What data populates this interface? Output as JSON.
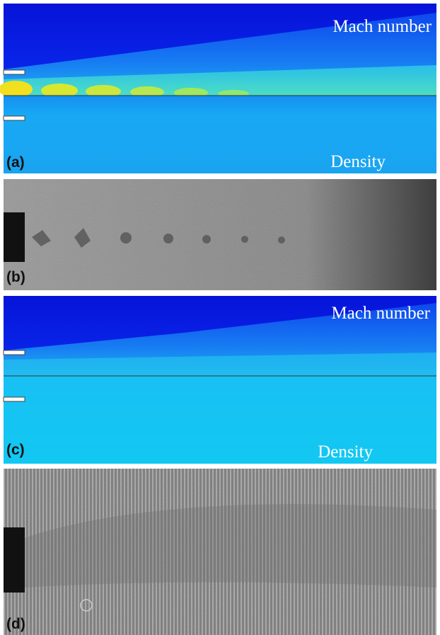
{
  "panels": [
    {
      "label": "(a)",
      "upper_label": "Mach number",
      "lower_label": "Density"
    },
    {
      "label": "(b)"
    },
    {
      "label": "(c)",
      "upper_label": "Mach number",
      "lower_label": "Density"
    },
    {
      "label": "(d)"
    }
  ]
}
